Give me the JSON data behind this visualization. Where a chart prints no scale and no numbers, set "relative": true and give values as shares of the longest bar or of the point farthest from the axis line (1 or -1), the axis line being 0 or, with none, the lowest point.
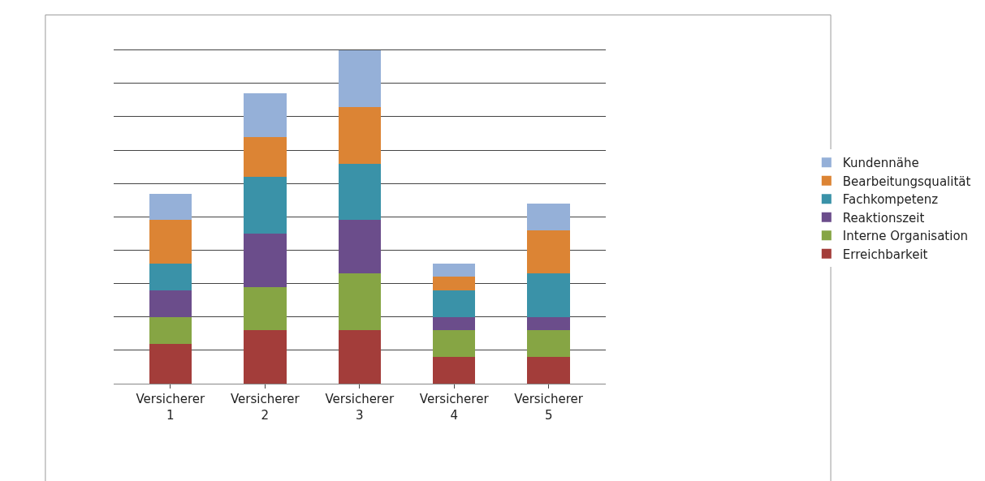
{
  "chart_data": {
    "type": "bar",
    "stacked": true,
    "relative": true,
    "grid": "y",
    "legend": "right",
    "categories": [
      "Versicherer 1",
      "Versicherer 2",
      "Versicherer 3",
      "Versicherer 4",
      "Versicherer 5"
    ],
    "series": [
      {
        "name": "Erreichbarkeit",
        "color": "#a33d3a",
        "values": [
          0.12,
          0.16,
          0.16,
          0.08,
          0.08
        ]
      },
      {
        "name": "Interne Organisation",
        "color": "#86a544",
        "values": [
          0.08,
          0.13,
          0.17,
          0.08,
          0.08
        ]
      },
      {
        "name": "Reaktionszeit",
        "color": "#6b4d8b",
        "values": [
          0.08,
          0.16,
          0.16,
          0.04,
          0.04
        ]
      },
      {
        "name": "Fachkompetenz",
        "color": "#3a92a8",
        "values": [
          0.08,
          0.17,
          0.17,
          0.08,
          0.13
        ]
      },
      {
        "name": "Bearbeitungsqualität",
        "color": "#dc8434",
        "values": [
          0.13,
          0.12,
          0.17,
          0.04,
          0.13
        ]
      },
      {
        "name": "Kundennähe",
        "color": "#95b0d8",
        "values": [
          0.08,
          0.13,
          0.17,
          0.04,
          0.08
        ]
      }
    ]
  }
}
